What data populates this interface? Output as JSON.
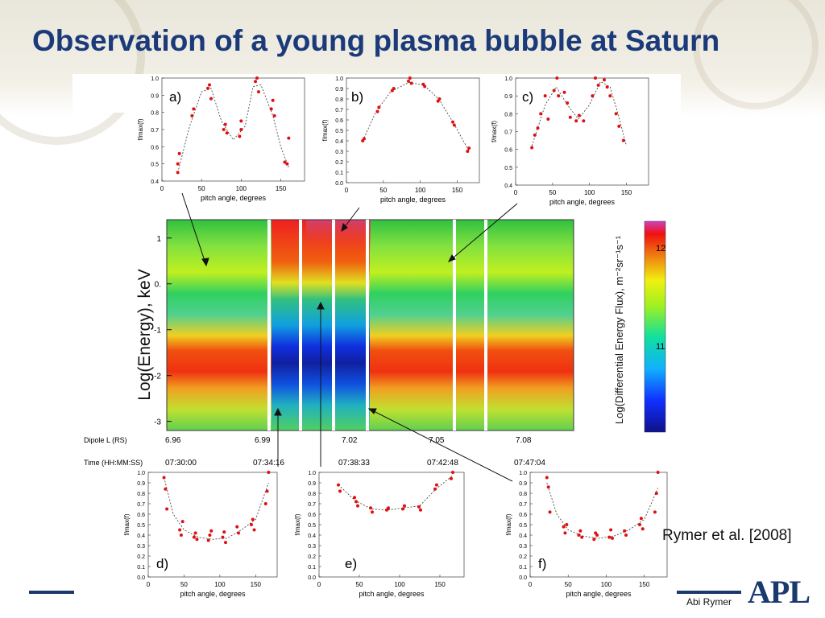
{
  "slide": {
    "title": "Observation of a young plasma bubble at Saturn",
    "citation": "Rymer et al. [2008]",
    "author": "Abi Rymer",
    "logo": "APL"
  },
  "colors": {
    "title": "#1a3a7a",
    "marker": "#e01010",
    "rule": "#1a3a6e"
  },
  "chart_data": [
    {
      "type": "heatmap",
      "ylabel": "Log(Energy), keV",
      "yticks": [
        "1",
        "0.",
        "-1",
        "-2",
        "-3"
      ],
      "ylim": [
        -3.2,
        1.4
      ],
      "colorbar_label": "Log(Differential Energy Flux), m⁻²sr⁻¹s⁻¹",
      "colorbar_ticks": [
        "12",
        "11"
      ],
      "axis_rows": [
        {
          "label": "Dipole L (RS)",
          "ticks": [
            "6.96",
            "6.99",
            "7.02",
            "7.05",
            "7.08"
          ]
        },
        {
          "label": "Time (HH:MM:SS)",
          "ticks": [
            "07:30:00",
            "07:34:16",
            "07:38:33",
            "07:42:48",
            "07:47:04"
          ]
        }
      ]
    },
    {
      "type": "scatter",
      "panel": "a)",
      "xlabel": "pitch angle, degrees",
      "ylabel": "f/max(f)",
      "xlim": [
        0,
        180
      ],
      "ylim": [
        0.4,
        1.0
      ],
      "xticks": [
        "0",
        "50",
        "100",
        "150"
      ],
      "yticks": [
        "0.4",
        "0.5",
        "0.6",
        "0.7",
        "0.8",
        "0.9",
        "1.0"
      ],
      "points": [
        [
          20,
          0.45
        ],
        [
          20,
          0.5
        ],
        [
          22,
          0.56
        ],
        [
          38,
          0.78
        ],
        [
          40,
          0.82
        ],
        [
          58,
          0.94
        ],
        [
          60,
          0.96
        ],
        [
          62,
          0.88
        ],
        [
          78,
          0.7
        ],
        [
          80,
          0.73
        ],
        [
          82,
          0.68
        ],
        [
          98,
          0.66
        ],
        [
          100,
          0.7
        ],
        [
          100,
          0.75
        ],
        [
          118,
          0.98
        ],
        [
          120,
          1.0
        ],
        [
          122,
          0.92
        ],
        [
          138,
          0.82
        ],
        [
          140,
          0.87
        ],
        [
          142,
          0.78
        ],
        [
          155,
          0.51
        ],
        [
          158,
          0.5
        ],
        [
          160,
          0.65
        ]
      ],
      "fit": [
        [
          20,
          0.45
        ],
        [
          35,
          0.72
        ],
        [
          50,
          0.92
        ],
        [
          62,
          0.94
        ],
        [
          75,
          0.75
        ],
        [
          90,
          0.64
        ],
        [
          105,
          0.72
        ],
        [
          115,
          0.95
        ],
        [
          125,
          0.96
        ],
        [
          140,
          0.78
        ],
        [
          150,
          0.6
        ],
        [
          160,
          0.48
        ]
      ]
    },
    {
      "type": "scatter",
      "panel": "b)",
      "xlabel": "pitch angle, degrees",
      "ylabel": "f/max(f)",
      "xlim": [
        0,
        180
      ],
      "ylim": [
        0.0,
        1.0
      ],
      "xticks": [
        "0",
        "50",
        "100",
        "150"
      ],
      "yticks": [
        "0.0",
        "0.1",
        "0.2",
        "0.3",
        "0.4",
        "0.5",
        "0.6",
        "0.7",
        "0.8",
        "0.9",
        "1.0"
      ],
      "points": [
        [
          22,
          0.4
        ],
        [
          24,
          0.42
        ],
        [
          42,
          0.68
        ],
        [
          44,
          0.72
        ],
        [
          62,
          0.88
        ],
        [
          64,
          0.9
        ],
        [
          84,
          0.97
        ],
        [
          86,
          1.0
        ],
        [
          88,
          0.95
        ],
        [
          104,
          0.94
        ],
        [
          106,
          0.92
        ],
        [
          124,
          0.78
        ],
        [
          126,
          0.8
        ],
        [
          144,
          0.58
        ],
        [
          146,
          0.55
        ],
        [
          164,
          0.3
        ],
        [
          166,
          0.33
        ]
      ],
      "fit": [
        [
          22,
          0.4
        ],
        [
          40,
          0.68
        ],
        [
          60,
          0.87
        ],
        [
          85,
          0.96
        ],
        [
          105,
          0.93
        ],
        [
          125,
          0.8
        ],
        [
          145,
          0.57
        ],
        [
          166,
          0.3
        ]
      ]
    },
    {
      "type": "scatter",
      "panel": "c)",
      "xlabel": "pitch angle, degrees",
      "ylabel": "f/max(f)",
      "xlim": [
        0,
        180
      ],
      "ylim": [
        0.4,
        1.0
      ],
      "xticks": [
        "0",
        "50",
        "100",
        "150"
      ],
      "yticks": [
        "0.4",
        "0.5",
        "0.6",
        "0.7",
        "0.8",
        "0.9",
        "1.0"
      ],
      "points": [
        [
          22,
          0.61
        ],
        [
          26,
          0.68
        ],
        [
          30,
          0.72
        ],
        [
          34,
          0.8
        ],
        [
          40,
          0.9
        ],
        [
          44,
          0.77
        ],
        [
          52,
          0.93
        ],
        [
          56,
          1.0
        ],
        [
          58,
          0.9
        ],
        [
          66,
          0.92
        ],
        [
          70,
          0.86
        ],
        [
          74,
          0.78
        ],
        [
          82,
          0.76
        ],
        [
          86,
          0.79
        ],
        [
          92,
          0.76
        ],
        [
          104,
          0.9
        ],
        [
          108,
          1.0
        ],
        [
          112,
          0.96
        ],
        [
          120,
          0.99
        ],
        [
          124,
          0.95
        ],
        [
          128,
          0.9
        ],
        [
          136,
          0.8
        ],
        [
          140,
          0.73
        ],
        [
          146,
          0.65
        ]
      ],
      "fit": [
        [
          22,
          0.62
        ],
        [
          40,
          0.85
        ],
        [
          55,
          0.95
        ],
        [
          70,
          0.85
        ],
        [
          85,
          0.77
        ],
        [
          100,
          0.85
        ],
        [
          115,
          0.98
        ],
        [
          128,
          0.95
        ],
        [
          140,
          0.78
        ],
        [
          150,
          0.62
        ]
      ]
    },
    {
      "type": "scatter",
      "panel": "d)",
      "xlabel": "pitch angle, degrees",
      "ylabel": "f/max(f)",
      "xlim": [
        0,
        180
      ],
      "ylim": [
        0.0,
        1.0
      ],
      "xticks": [
        "0",
        "50",
        "100",
        "150"
      ],
      "yticks": [
        "0.0",
        "0.1",
        "0.2",
        "0.3",
        "0.4",
        "0.5",
        "0.6",
        "0.7",
        "0.8",
        "0.9",
        "1.0"
      ],
      "points": [
        [
          22,
          0.95
        ],
        [
          24,
          0.84
        ],
        [
          26,
          0.65
        ],
        [
          44,
          0.45
        ],
        [
          46,
          0.4
        ],
        [
          48,
          0.53
        ],
        [
          64,
          0.38
        ],
        [
          66,
          0.42
        ],
        [
          68,
          0.36
        ],
        [
          84,
          0.35
        ],
        [
          86,
          0.4
        ],
        [
          88,
          0.44
        ],
        [
          104,
          0.38
        ],
        [
          106,
          0.43
        ],
        [
          108,
          0.33
        ],
        [
          124,
          0.48
        ],
        [
          126,
          0.42
        ],
        [
          144,
          0.5
        ],
        [
          146,
          0.55
        ],
        [
          148,
          0.45
        ],
        [
          164,
          0.7
        ],
        [
          166,
          0.82
        ],
        [
          168,
          1.0
        ]
      ],
      "fit": [
        [
          22,
          0.95
        ],
        [
          35,
          0.6
        ],
        [
          50,
          0.45
        ],
        [
          70,
          0.38
        ],
        [
          90,
          0.36
        ],
        [
          110,
          0.37
        ],
        [
          130,
          0.45
        ],
        [
          150,
          0.55
        ],
        [
          168,
          0.9
        ]
      ]
    },
    {
      "type": "scatter",
      "panel": "e)",
      "xlabel": "pitch angle, degrees",
      "ylabel": "f/max(f)",
      "xlim": [
        0,
        180
      ],
      "ylim": [
        0.0,
        1.0
      ],
      "xticks": [
        "0",
        "50",
        "100",
        "150"
      ],
      "yticks": [
        "0.0",
        "0.1",
        "0.2",
        "0.3",
        "0.4",
        "0.5",
        "0.6",
        "0.7",
        "0.8",
        "0.9",
        "1.0"
      ],
      "points": [
        [
          24,
          0.88
        ],
        [
          26,
          0.82
        ],
        [
          44,
          0.76
        ],
        [
          46,
          0.72
        ],
        [
          48,
          0.68
        ],
        [
          64,
          0.66
        ],
        [
          66,
          0.62
        ],
        [
          84,
          0.64
        ],
        [
          86,
          0.66
        ],
        [
          104,
          0.65
        ],
        [
          106,
          0.68
        ],
        [
          124,
          0.67
        ],
        [
          126,
          0.64
        ],
        [
          144,
          0.84
        ],
        [
          146,
          0.88
        ],
        [
          164,
          0.94
        ],
        [
          166,
          1.0
        ]
      ],
      "fit": [
        [
          24,
          0.88
        ],
        [
          45,
          0.73
        ],
        [
          65,
          0.65
        ],
        [
          85,
          0.64
        ],
        [
          105,
          0.66
        ],
        [
          125,
          0.68
        ],
        [
          145,
          0.84
        ],
        [
          166,
          0.97
        ]
      ]
    },
    {
      "type": "scatter",
      "panel": "f)",
      "xlabel": "pitch angle, degrees",
      "ylabel": "f/max(f)",
      "xlim": [
        0,
        180
      ],
      "ylim": [
        0.0,
        1.0
      ],
      "xticks": [
        "0",
        "50",
        "100",
        "150"
      ],
      "yticks": [
        "0.0",
        "0.1",
        "0.2",
        "0.3",
        "0.4",
        "0.5",
        "0.6",
        "0.7",
        "0.8",
        "0.9",
        "1.0"
      ],
      "points": [
        [
          22,
          0.95
        ],
        [
          24,
          0.86
        ],
        [
          26,
          0.62
        ],
        [
          44,
          0.48
        ],
        [
          46,
          0.42
        ],
        [
          48,
          0.5
        ],
        [
          64,
          0.4
        ],
        [
          66,
          0.44
        ],
        [
          68,
          0.38
        ],
        [
          84,
          0.36
        ],
        [
          86,
          0.42
        ],
        [
          88,
          0.4
        ],
        [
          104,
          0.38
        ],
        [
          106,
          0.45
        ],
        [
          108,
          0.37
        ],
        [
          124,
          0.44
        ],
        [
          126,
          0.4
        ],
        [
          144,
          0.5
        ],
        [
          146,
          0.56
        ],
        [
          148,
          0.46
        ],
        [
          164,
          0.62
        ],
        [
          166,
          0.8
        ],
        [
          168,
          1.0
        ]
      ],
      "fit": [
        [
          22,
          0.9
        ],
        [
          35,
          0.6
        ],
        [
          50,
          0.45
        ],
        [
          70,
          0.39
        ],
        [
          90,
          0.37
        ],
        [
          110,
          0.39
        ],
        [
          130,
          0.45
        ],
        [
          150,
          0.55
        ],
        [
          168,
          0.85
        ]
      ]
    }
  ]
}
